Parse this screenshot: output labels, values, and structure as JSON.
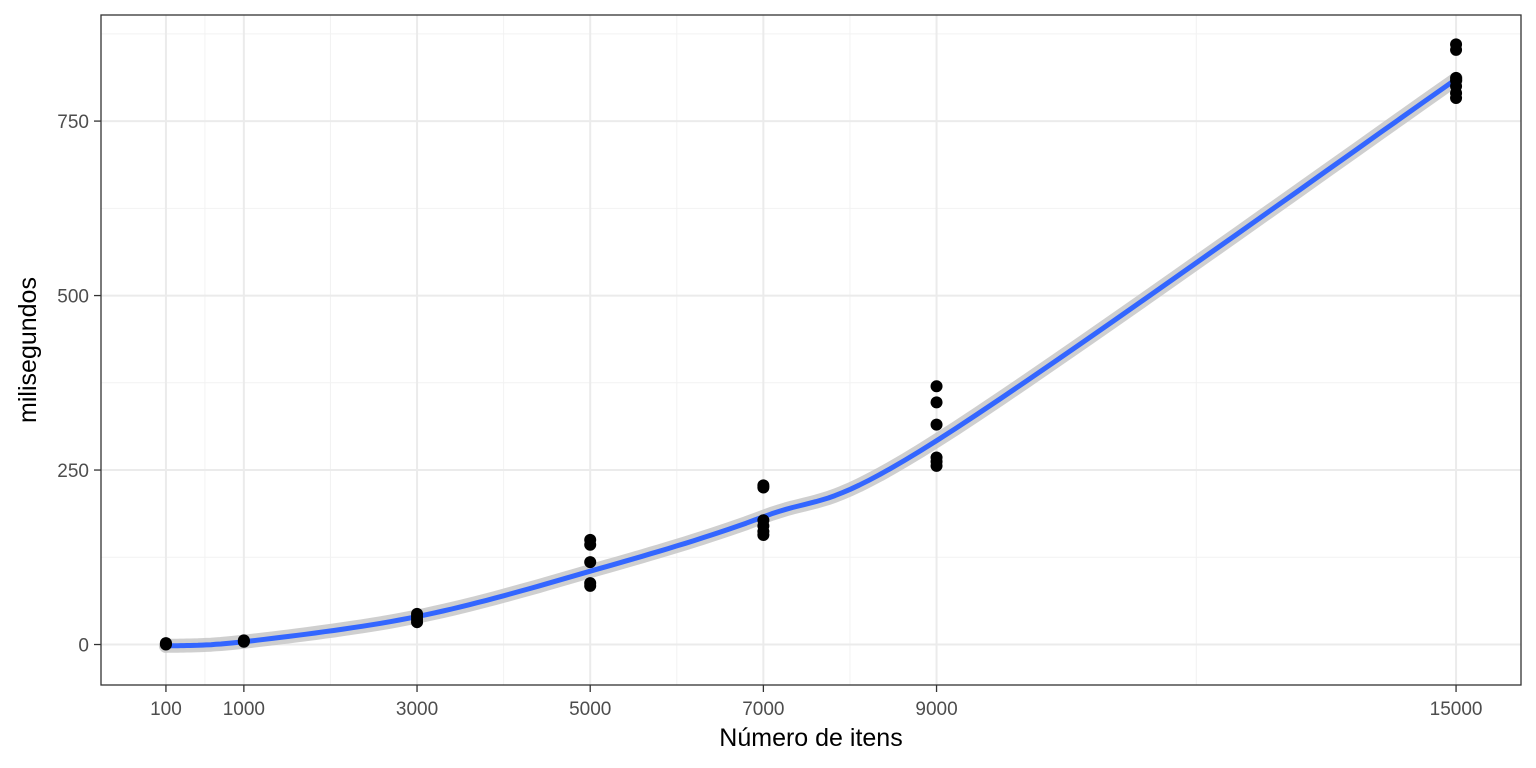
{
  "chart_data": {
    "type": "scatter",
    "title": "",
    "xlabel": "Número de itens",
    "ylabel": "milisegundos",
    "xlim": [
      -650,
      15750
    ],
    "ylim": [
      -58,
      902
    ],
    "x_ticks": [
      100,
      1000,
      3000,
      5000,
      7000,
      9000,
      15000
    ],
    "y_ticks": [
      0,
      250,
      500,
      750
    ],
    "grid": true,
    "legend": "none",
    "points": [
      {
        "x": 100,
        "y": 0
      },
      {
        "x": 100,
        "y": 1
      },
      {
        "x": 100,
        "y": 2
      },
      {
        "x": 1000,
        "y": 4
      },
      {
        "x": 1000,
        "y": 5
      },
      {
        "x": 1000,
        "y": 6
      },
      {
        "x": 3000,
        "y": 32
      },
      {
        "x": 3000,
        "y": 36
      },
      {
        "x": 3000,
        "y": 40
      },
      {
        "x": 3000,
        "y": 44
      },
      {
        "x": 5000,
        "y": 84
      },
      {
        "x": 5000,
        "y": 88
      },
      {
        "x": 5000,
        "y": 118
      },
      {
        "x": 5000,
        "y": 143
      },
      {
        "x": 5000,
        "y": 150
      },
      {
        "x": 7000,
        "y": 157
      },
      {
        "x": 7000,
        "y": 162
      },
      {
        "x": 7000,
        "y": 170
      },
      {
        "x": 7000,
        "y": 178
      },
      {
        "x": 7000,
        "y": 225
      },
      {
        "x": 7000,
        "y": 228
      },
      {
        "x": 9000,
        "y": 256
      },
      {
        "x": 9000,
        "y": 262
      },
      {
        "x": 9000,
        "y": 268
      },
      {
        "x": 9000,
        "y": 315
      },
      {
        "x": 9000,
        "y": 347
      },
      {
        "x": 9000,
        "y": 370
      },
      {
        "x": 15000,
        "y": 783
      },
      {
        "x": 15000,
        "y": 790
      },
      {
        "x": 15000,
        "y": 800
      },
      {
        "x": 15000,
        "y": 808
      },
      {
        "x": 15000,
        "y": 812
      },
      {
        "x": 15000,
        "y": 852
      },
      {
        "x": 15000,
        "y": 860
      }
    ],
    "smooth_line": {
      "color": "#3366ff",
      "band_color": "#c7c7c7",
      "x": [
        100,
        1000,
        3000,
        5000,
        7000,
        9000,
        15000
      ],
      "y": [
        -2,
        4,
        40,
        105,
        183,
        292,
        810
      ]
    },
    "point_color": "#000000"
  }
}
